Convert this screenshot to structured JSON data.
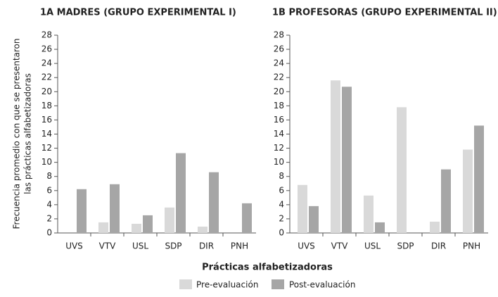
{
  "chart_data": [
    {
      "type": "bar",
      "title": "1A MADRES (GRUPO EXPERIMENTAL I)",
      "categories": [
        "UVS",
        "VTV",
        "USL",
        "SDP",
        "DIR",
        "PNH"
      ],
      "series": [
        {
          "name": "Pre-evaluación",
          "color": "#d9d9d9",
          "values": [
            0,
            1.5,
            1.3,
            3.6,
            0.9,
            0
          ]
        },
        {
          "name": "Post-evaluación",
          "color": "#a6a6a6",
          "values": [
            6.2,
            6.9,
            2.5,
            11.3,
            8.6,
            4.2
          ]
        }
      ],
      "ylim": [
        0,
        28
      ],
      "yticks": [
        0,
        2,
        4,
        6,
        8,
        10,
        12,
        14,
        16,
        18,
        20,
        22,
        24,
        26,
        28
      ]
    },
    {
      "type": "bar",
      "title": "1B PROFESORAS (GRUPO EXPERIMENTAL II)",
      "categories": [
        "UVS",
        "VTV",
        "USL",
        "SDP",
        "DIR",
        "PNH"
      ],
      "series": [
        {
          "name": "Pre-evaluación",
          "color": "#d9d9d9",
          "values": [
            6.8,
            21.6,
            5.3,
            17.8,
            1.6,
            11.8
          ]
        },
        {
          "name": "Post-evaluación",
          "color": "#a6a6a6",
          "values": [
            3.8,
            20.7,
            1.5,
            0,
            9.0,
            15.2
          ]
        }
      ],
      "ylim": [
        0,
        28
      ],
      "yticks": [
        0,
        2,
        4,
        6,
        8,
        10,
        12,
        14,
        16,
        18,
        20,
        22,
        24,
        26,
        28
      ]
    }
  ],
  "ylabel": [
    "Frecuencia promedio con que se presentaron",
    "las prácticas alfabetizadoras"
  ],
  "xlabel": "Prácticas alfabetizadoras"
}
